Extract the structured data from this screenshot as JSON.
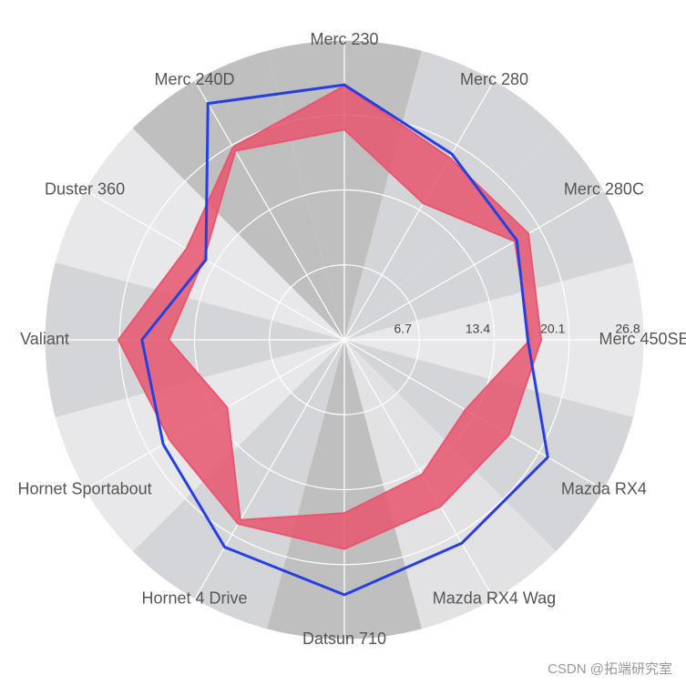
{
  "chart_data": {
    "type": "radar",
    "categories": [
      "Merc 230",
      "Merc 280",
      "Merc 280C",
      "Merc 450SE",
      "Mazda RX4",
      "Mazda RX4 Wag",
      "Datsun 710",
      "Hornet 4 Drive",
      "Hornet Sportabout",
      "Valiant",
      "Duster 360",
      "Merc 240D"
    ],
    "band": {
      "color": "#e8566f",
      "low": [
        18.8,
        14.1,
        17.6,
        16.6,
        12.5,
        13.9,
        15.5,
        18.6,
        12.1,
        15.7,
        14.5,
        19.5
      ],
      "high": [
        22.7,
        18.8,
        19.0,
        17.6,
        17.0,
        17.2,
        18.7,
        19.0,
        18.0,
        20.2,
        16.3,
        19.9
      ]
    },
    "series": [
      {
        "color": "#2640e0",
        "values": [
          22.8,
          19.2,
          17.8,
          16.4,
          21.0,
          21.0,
          22.8,
          21.4,
          18.7,
          18.1,
          14.3,
          24.4
        ]
      }
    ],
    "rlim": [
      0,
      26.8
    ],
    "rticks": [
      6.7,
      13.4,
      20.1,
      26.8
    ],
    "grid": true,
    "watermark": "CSDN @拓端研究室"
  }
}
